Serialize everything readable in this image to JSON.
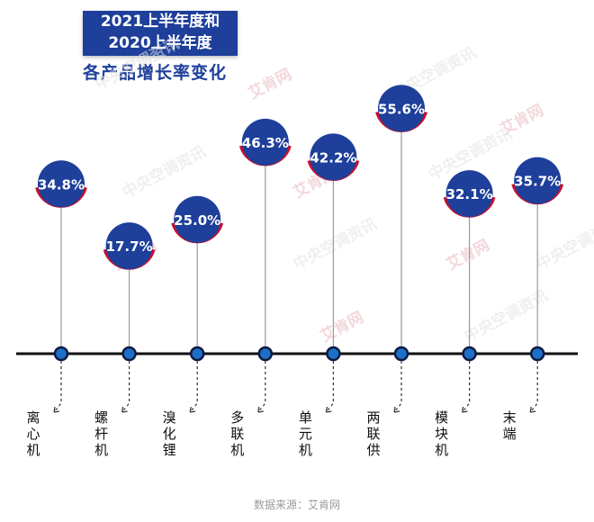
{
  "title": {
    "line1": "2021上半年度和",
    "line2": "2020上半年度",
    "subtitle": "各产品增长率变化"
  },
  "source": "数据来源：艾肯网",
  "watermarks": [
    "中央空调资讯",
    "艾肯网"
  ],
  "colors": {
    "bubble": "#1e3f9a",
    "bubble_arc": "#c8102e",
    "axis": "#111111",
    "dot_fill": "#1e6fc9",
    "stem": "#9a9a9a"
  },
  "chart_data": {
    "type": "lollipop",
    "categories": [
      "离心机",
      "螺杆机",
      "溴化锂",
      "多联机",
      "单元机",
      "两联供",
      "模块机",
      "末端"
    ],
    "values": [
      34.8,
      17.7,
      25.0,
      46.3,
      42.2,
      55.6,
      32.1,
      35.7
    ],
    "value_labels": [
      "34.8%",
      "17.7%",
      "25.0%",
      "46.3%",
      "42.2%",
      "55.6%",
      "32.1%",
      "35.7%"
    ],
    "ylim": [
      0,
      60
    ]
  }
}
